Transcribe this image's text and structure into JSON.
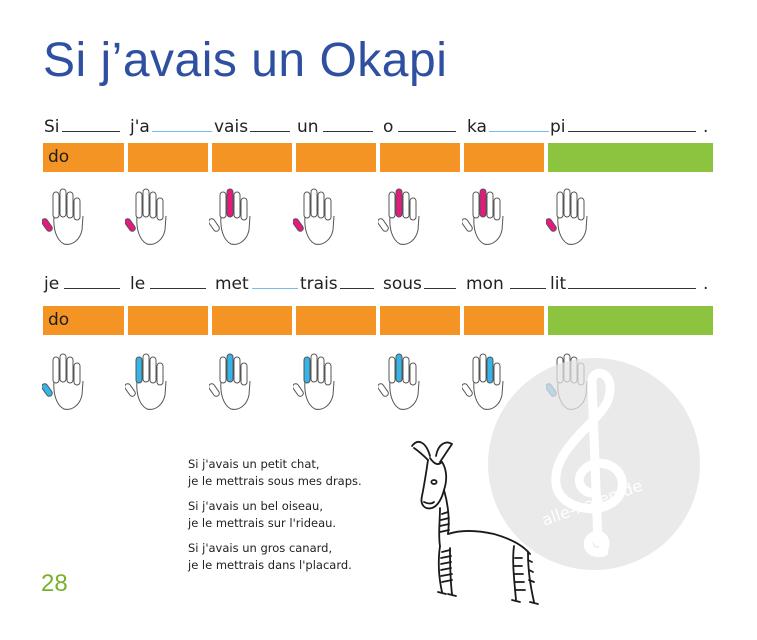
{
  "page": {
    "title": "Si j’avais un Okapi",
    "page_number": "28",
    "watermark_text": "alle-noten.de"
  },
  "rows": [
    {
      "syllables": [
        "Si",
        "j'a",
        "vais",
        "un",
        "o",
        "ka",
        "pi"
      ],
      "end_punct": ".",
      "note": "do",
      "finger_color": "#e6197e"
    },
    {
      "syllables": [
        "je",
        "le",
        "met",
        "trais",
        "sous",
        "mon",
        "lit"
      ],
      "end_punct": ".",
      "note": "do",
      "finger_color": "#35b4e8"
    }
  ],
  "colors": {
    "title": "#2f4fa0",
    "bar_orange": "#f39425",
    "bar_green": "#8cc43f",
    "page_number": "#7ab02a"
  },
  "poem": [
    [
      "Si j'avais un petit chat,",
      "je le mettrais sous mes draps."
    ],
    [
      "Si j'avais un bel oiseau,",
      "je le mettrais sur l'rideau."
    ],
    [
      "Si j'avais un gros canard,",
      "je le mettrais dans l'placard."
    ]
  ],
  "illustration": "okapi-drawing",
  "icons": [
    "hand-icon",
    "treble-clef-icon"
  ]
}
